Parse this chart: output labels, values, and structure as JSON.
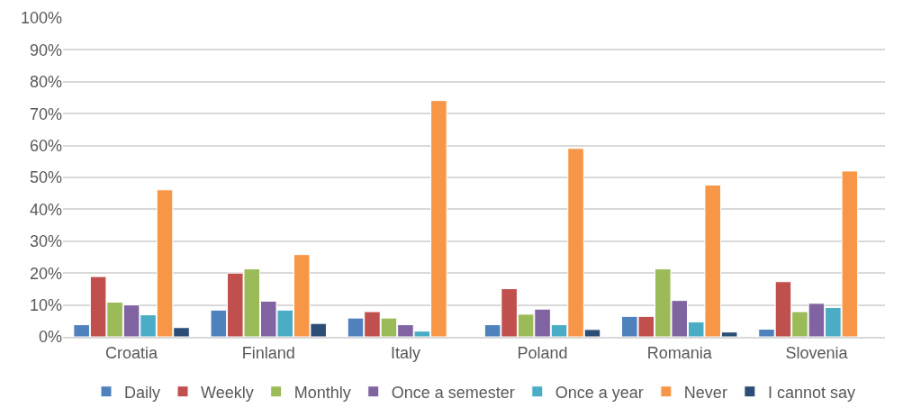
{
  "chart_data": {
    "type": "bar",
    "categories": [
      "Croatia",
      "Finland",
      "Italy",
      "Poland",
      "Romania",
      "Slovenia"
    ],
    "series": [
      {
        "name": "Daily",
        "color": "#4f81bd",
        "values": [
          3.8,
          8.4,
          5.9,
          3.8,
          6.4,
          2.4
        ]
      },
      {
        "name": "Weekly",
        "color": "#c0504d",
        "values": [
          18.9,
          20,
          7.9,
          15.1,
          6.4,
          17.3
        ]
      },
      {
        "name": "Monthly",
        "color": "#9bbb59",
        "values": [
          10.9,
          21.3,
          5.9,
          7.1,
          21.3,
          7.9
        ]
      },
      {
        "name": "Once a semester",
        "color": "#8064a2",
        "values": [
          10,
          11.2,
          3.8,
          8.7,
          11.4,
          10.5
        ]
      },
      {
        "name": "Once a year",
        "color": "#4bacc6",
        "values": [
          6.9,
          8.4,
          1.8,
          3.8,
          4.7,
          9.2
        ]
      },
      {
        "name": "Never",
        "color": "#f79646",
        "values": [
          46.1,
          25.8,
          74.1,
          59.1,
          47.6,
          52
        ]
      },
      {
        "name": "I cannot say",
        "color": "#2c4d75",
        "values": [
          2.9,
          4.2,
          null,
          2.3,
          1.5,
          null
        ]
      }
    ],
    "ylim": [
      0,
      100
    ],
    "yticks": [
      {
        "value": 0,
        "label": "0%"
      },
      {
        "value": 10,
        "label": "10%"
      },
      {
        "value": 20,
        "label": "20%"
      },
      {
        "value": 30,
        "label": "30%"
      },
      {
        "value": 40,
        "label": "40%"
      },
      {
        "value": 50,
        "label": "50%"
      },
      {
        "value": 60,
        "label": "60%"
      },
      {
        "value": 70,
        "label": "70%"
      },
      {
        "value": 80,
        "label": "80%"
      },
      {
        "value": 90,
        "label": "90%"
      },
      {
        "value": 100,
        "label": "100%"
      }
    ],
    "grid": "y",
    "legend": "bottom"
  }
}
